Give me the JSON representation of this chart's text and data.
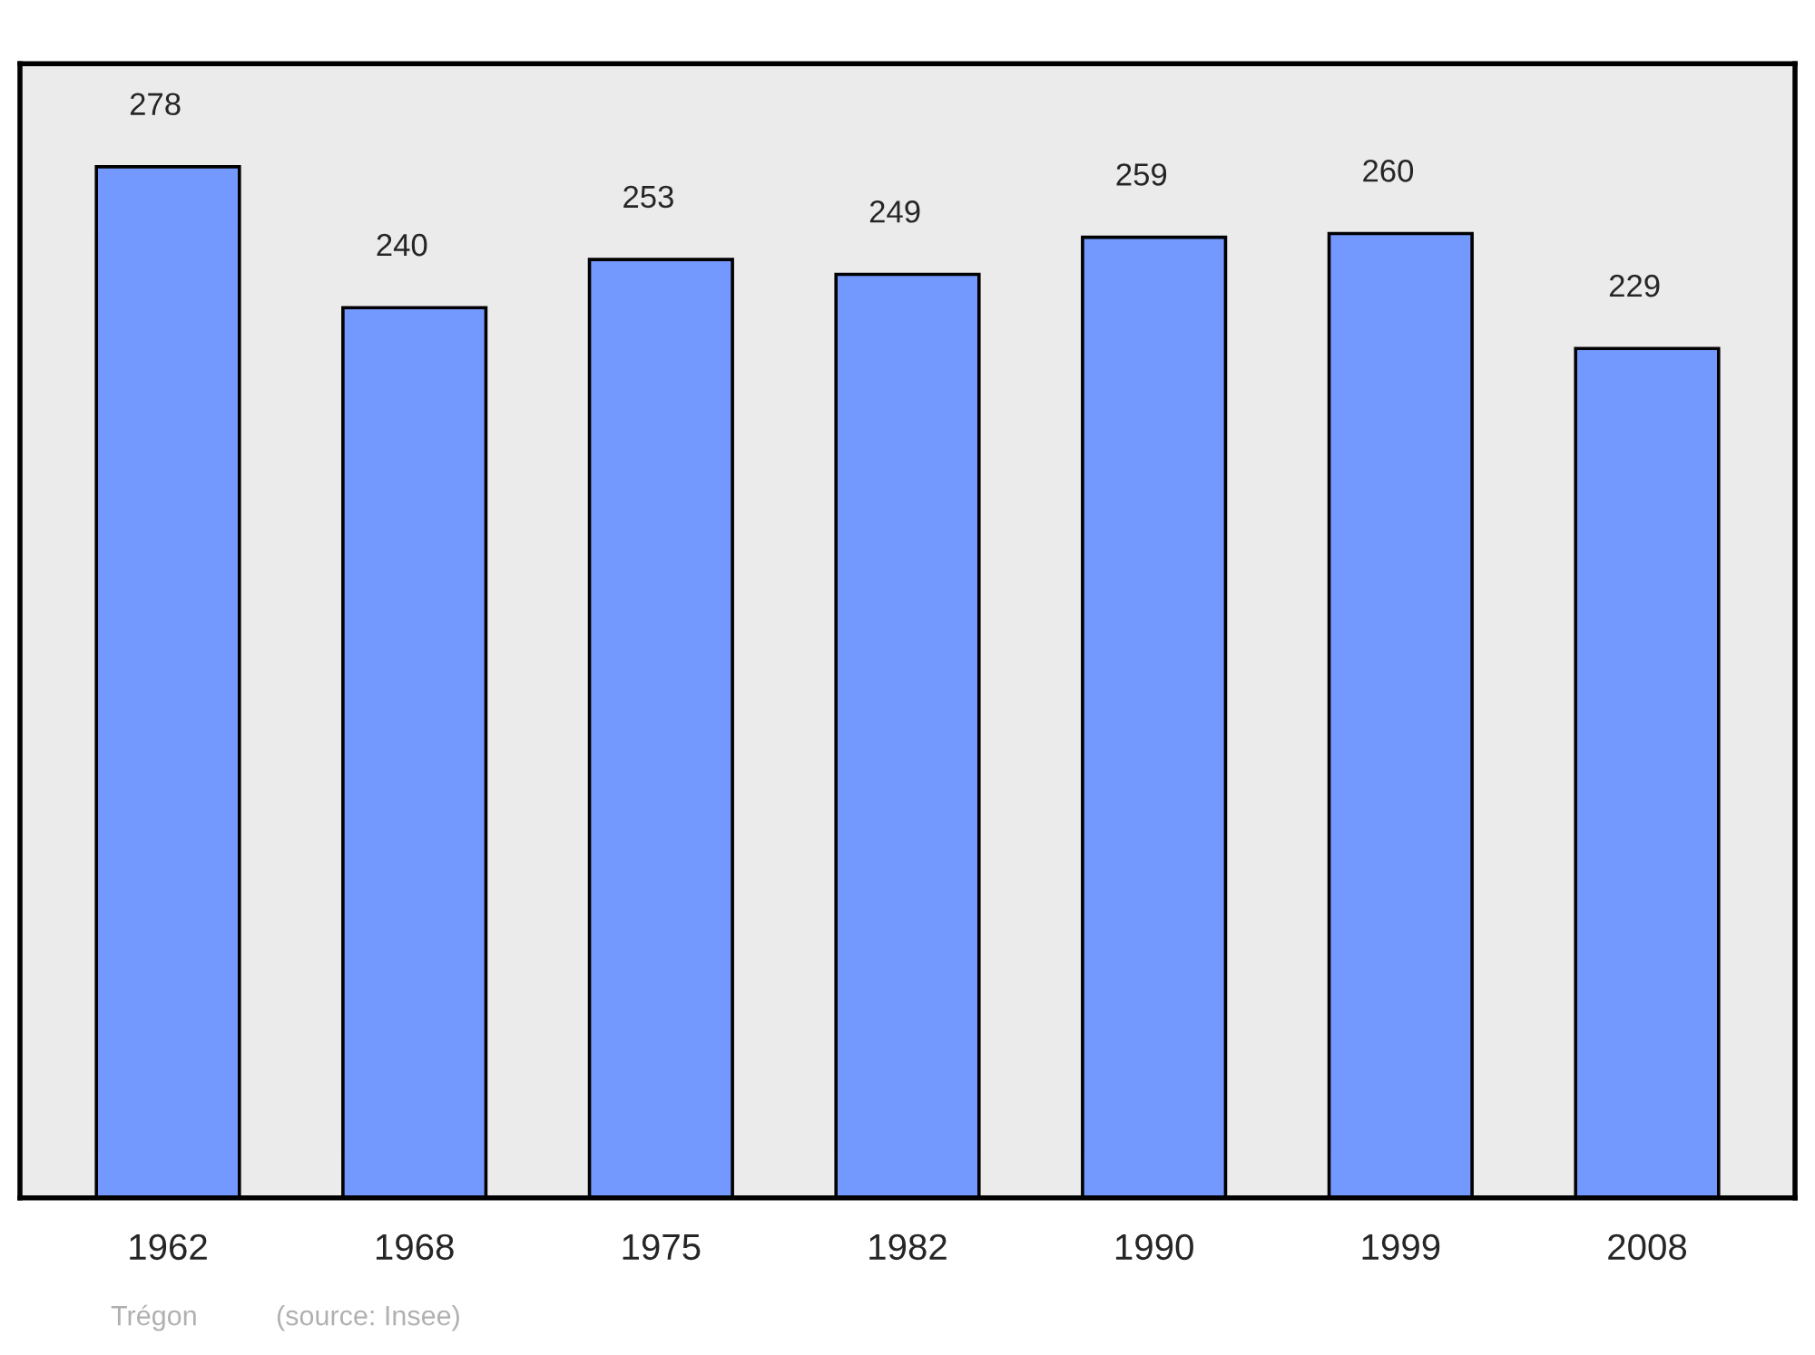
{
  "chart_data": {
    "type": "bar",
    "categories": [
      "1962",
      "1968",
      "1975",
      "1982",
      "1990",
      "1999",
      "2008"
    ],
    "values": [
      278,
      240,
      253,
      249,
      259,
      260,
      229
    ],
    "color": "#7399ff",
    "data_labels": true,
    "grid": false,
    "tick_labels": "x",
    "annotations": [
      "Trégon",
      "(source: Insee)"
    ]
  }
}
